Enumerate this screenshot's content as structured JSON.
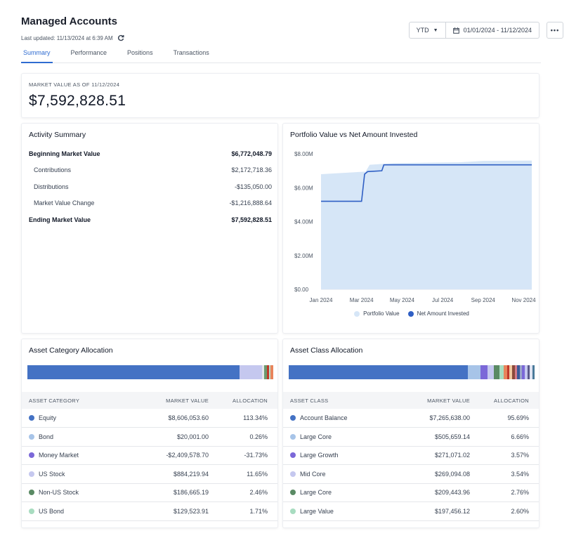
{
  "header": {
    "title": "Managed Accounts",
    "last_updated": "Last updated: 11/13/2024 at 6:39 AM"
  },
  "controls": {
    "period": "YTD",
    "date_range": "01/01/2024 - 11/12/2024",
    "more": "•••"
  },
  "tabs": [
    "Summary",
    "Performance",
    "Positions",
    "Transactions"
  ],
  "market_value": {
    "label": "MARKET VALUE AS OF 11/12/2024",
    "value": "$7,592,828.51"
  },
  "activity": {
    "title": "Activity Summary",
    "rows": [
      {
        "label": "Beginning Market Value",
        "value": "$6,772,048.79"
      },
      {
        "label": "Contributions",
        "value": "$2,172,718.36"
      },
      {
        "label": "Distributions",
        "value": "-$135,050.00"
      },
      {
        "label": "Market Value Change",
        "value": "-$1,216,888.64"
      },
      {
        "label": "Ending Market Value",
        "value": "$7,592,828.51"
      }
    ]
  },
  "chart_data": {
    "type": "area",
    "title": "Portfolio Value vs Net Amount Invested",
    "x_tick_labels": [
      "Jan 2024",
      "Mar 2024",
      "May 2024",
      "Jul 2024",
      "Sep 2024",
      "Nov 2024"
    ],
    "y_tick_labels": [
      "$0.00",
      "$2.00M",
      "$4.00M",
      "$6.00M",
      "$8.00M"
    ],
    "ylim": [
      0,
      8000000
    ],
    "xlim": [
      0,
      10.4
    ],
    "series": [
      {
        "name": "Portfolio Value",
        "type": "area",
        "color": "#d6e6f7",
        "x": [
          0,
          2.2,
          2.4,
          3.6,
          6.8,
          8.0,
          10.4
        ],
        "values": [
          6800000,
          6950000,
          7350000,
          7450000,
          7500000,
          7580000,
          7600000
        ]
      },
      {
        "name": "Net Amount Invested",
        "type": "line",
        "color": "#2f5fc4",
        "x": [
          0,
          2.0,
          2.15,
          2.3,
          3.0,
          3.1,
          10.4
        ],
        "values": [
          5200000,
          5200000,
          6800000,
          6950000,
          7000000,
          7350000,
          7350000
        ]
      }
    ]
  },
  "asset_category": {
    "title": "Asset Category Allocation",
    "headers": [
      "ASSET CATEGORY",
      "MARKET VALUE",
      "ALLOCATION"
    ],
    "segments": [
      {
        "color": "#4472c4",
        "weight": 85
      },
      {
        "color": "#c5c8ef",
        "weight": 9
      },
      {
        "color": "#e5e7eb",
        "weight": 0.8
      },
      {
        "color": "#6b9a6e",
        "weight": 1.2
      },
      {
        "color": "#c0392b",
        "weight": 0.6
      },
      {
        "color": "#b5e0c7",
        "weight": 0.8
      },
      {
        "color": "#e8845c",
        "weight": 1.0
      }
    ],
    "rows": [
      {
        "color": "#4472c4",
        "name": "Equity",
        "value": "$8,606,053.60",
        "alloc": "113.34%"
      },
      {
        "color": "#a7c4e8",
        "name": "Bond",
        "value": "$20,001.00",
        "alloc": "0.26%"
      },
      {
        "color": "#7b68d8",
        "name": "Money Market",
        "value": "-$2,409,578.70",
        "alloc": "-31.73%"
      },
      {
        "color": "#c5c8ef",
        "name": "US Stock",
        "value": "$884,219.94",
        "alloc": "11.65%"
      },
      {
        "color": "#5a8a64",
        "name": "Non-US Stock",
        "value": "$186,665.19",
        "alloc": "2.46%"
      },
      {
        "color": "#a8dcc0",
        "name": "US Bond",
        "value": "$129,523.91",
        "alloc": "1.71%"
      }
    ]
  },
  "asset_class": {
    "title": "Asset Class Allocation",
    "headers": [
      "ASSET CLASS",
      "MARKET VALUE",
      "ALLOCATION"
    ],
    "segments": [
      {
        "color": "#4472c4",
        "weight": 70
      },
      {
        "color": "#a7c4e8",
        "weight": 5
      },
      {
        "color": "#7b68d8",
        "weight": 2.6
      },
      {
        "color": "#c5c8ef",
        "weight": 2.6
      },
      {
        "color": "#5a8a64",
        "weight": 2.0
      },
      {
        "color": "#a8dcc0",
        "weight": 1.8
      },
      {
        "color": "#e8845c",
        "weight": 1.2
      },
      {
        "color": "#c0392b",
        "weight": 1.0
      },
      {
        "color": "#f0c8a0",
        "weight": 1.0
      },
      {
        "color": "#8b4a3c",
        "weight": 1.0
      },
      {
        "color": "#d47a8a",
        "weight": 1.0
      },
      {
        "color": "#3b5998",
        "weight": 1.0
      },
      {
        "color": "#9aa5c9",
        "weight": 1.0
      },
      {
        "color": "#7b68d8",
        "weight": 1.0
      },
      {
        "color": "#c5c8ef",
        "weight": 1.0
      },
      {
        "color": "#5a5a8a",
        "weight": 1.0
      },
      {
        "color": "#e0e4f2",
        "weight": 1.0
      },
      {
        "color": "#4a7a9a",
        "weight": 0.8
      }
    ],
    "rows": [
      {
        "color": "#4472c4",
        "name": "Account Balance",
        "value": "$7,265,638.00",
        "alloc": "95.69%"
      },
      {
        "color": "#a7c4e8",
        "name": "Large Core",
        "value": "$505,659.14",
        "alloc": "6.66%"
      },
      {
        "color": "#7b68d8",
        "name": "Large Growth",
        "value": "$271,071.02",
        "alloc": "3.57%"
      },
      {
        "color": "#c5c8ef",
        "name": "Mid Core",
        "value": "$269,094.08",
        "alloc": "3.54%"
      },
      {
        "color": "#5a8a64",
        "name": "Large Core",
        "value": "$209,443.96",
        "alloc": "2.76%"
      },
      {
        "color": "#a8dcc0",
        "name": "Large Value",
        "value": "$197,456.12",
        "alloc": "2.60%"
      }
    ]
  }
}
